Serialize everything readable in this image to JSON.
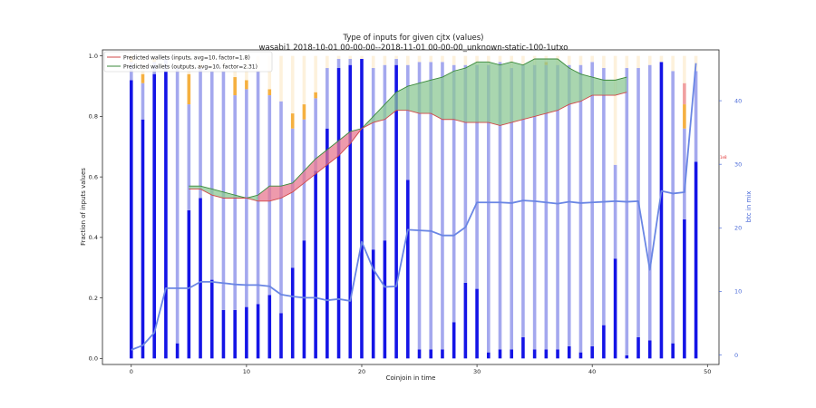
{
  "chart_data": {
    "type": "bar",
    "title": "Type of inputs for given cjtx (values)",
    "subtitle": "wasabi1 2018-10-01 00-00-00--2018-11-01 00-00-00_unknown-static-100-1utxo",
    "xlabel": "Coinjoin in time",
    "ylabel": "Fraction of inputs values",
    "y2label": "btc in mix",
    "xlim": [
      -2.5,
      51
    ],
    "ylim": [
      -0.02,
      1.02
    ],
    "y2lim": [
      -1.5,
      48
    ],
    "x_ticks": [
      0,
      10,
      20,
      30,
      40,
      50
    ],
    "y_ticks": [
      0.0,
      0.2,
      0.4,
      0.6,
      0.8,
      1.0
    ],
    "y2_ticks": [
      0,
      10,
      20,
      30,
      40
    ],
    "y_tick_labels": [
      "0.0",
      "0.2",
      "0.4",
      "0.6",
      "0.8",
      "1.0"
    ],
    "y2_tick_labels": [
      "0",
      "10",
      "20",
      "30",
      "40"
    ],
    "right_marker_label": "1e8",
    "legend_position": "top-left",
    "grid": false,
    "colors": {
      "dark_bar": "#1414e6",
      "light_bar": "#a4a8ee",
      "remix_bar": "#f5b040",
      "friend_bar": "#f0a0a0",
      "pale_bar": "#fdf1dc",
      "yellow_bar": "#f6d020",
      "btc_line": "#6a86e4",
      "pred_inputs_line": "#d04848",
      "pred_outputs_line": "#3a8a3a",
      "pred_inputs_fill": "#e87890",
      "pred_outputs_fill": "#8cc894"
    },
    "series": [
      {
        "name": "dark_fraction",
        "x": [
          0,
          1,
          2,
          3,
          4,
          5,
          6,
          7,
          8,
          9,
          10,
          11,
          12,
          13,
          14,
          15,
          16,
          17,
          18,
          19,
          20,
          21,
          22,
          23,
          24,
          25,
          26,
          27,
          28,
          29,
          30,
          31,
          32,
          33,
          34,
          35,
          36,
          37,
          38,
          39,
          40,
          41,
          42,
          43,
          44,
          45,
          46,
          47,
          48,
          49
        ],
        "values": [
          0.92,
          0.79,
          0.94,
          0.95,
          0.05,
          0.49,
          0.53,
          0.26,
          0.16,
          0.16,
          0.17,
          0.18,
          0.21,
          0.15,
          0.3,
          0.39,
          0.62,
          0.76,
          0.96,
          0.97,
          0.99,
          0.36,
          0.39,
          0.97,
          0.59,
          0.03,
          0.03,
          0.03,
          0.12,
          0.25,
          0.23,
          0.02,
          0.03,
          0.03,
          0.07,
          0.03,
          0.03,
          0.03,
          0.04,
          0.02,
          0.04,
          0.11,
          0.33,
          0.01,
          0.07,
          0.06,
          0.98,
          0.05,
          0.46,
          0.65
        ]
      },
      {
        "name": "light_fraction",
        "values": [
          0.06,
          0.12,
          0.04,
          0.04,
          0.91,
          0.35,
          0.43,
          0.69,
          0.79,
          0.71,
          0.72,
          0.77,
          0.66,
          0.7,
          0.46,
          0.4,
          0.24,
          0.2,
          0.03,
          0.02,
          0.0,
          0.6,
          0.58,
          0.02,
          0.38,
          0.95,
          0.95,
          0.95,
          0.85,
          0.72,
          0.74,
          0.95,
          0.95,
          0.93,
          0.9,
          0.94,
          0.94,
          0.94,
          0.93,
          0.95,
          0.94,
          0.85,
          0.31,
          0.95,
          0.89,
          0.91,
          0.0,
          0.9,
          0.3,
          0.3
        ]
      },
      {
        "name": "orange_fraction",
        "values": [
          0.02,
          0.03,
          0.01,
          0.0,
          0.0,
          0.1,
          0.01,
          0.0,
          0.0,
          0.06,
          0.03,
          0.0,
          0.02,
          0.0,
          0.05,
          0.05,
          0.02,
          0.0,
          0.0,
          0.0,
          0.0,
          0.0,
          0.0,
          0.0,
          0.0,
          0.0,
          0.0,
          0.0,
          0.0,
          0.0,
          0.0,
          0.0,
          0.0,
          0.0,
          0.0,
          0.0,
          0.01,
          0.0,
          0.0,
          0.0,
          0.0,
          0.0,
          0.0,
          0.0,
          0.0,
          0.0,
          0.0,
          0.0,
          0.08,
          0.0
        ]
      },
      {
        "name": "pink_fraction",
        "values": [
          0.0,
          0.0,
          0.0,
          0.0,
          0.0,
          0.0,
          0.0,
          0.0,
          0.0,
          0.0,
          0.0,
          0.0,
          0.0,
          0.0,
          0.0,
          0.0,
          0.0,
          0.0,
          0.0,
          0.0,
          0.0,
          0.0,
          0.0,
          0.0,
          0.0,
          0.0,
          0.0,
          0.0,
          0.0,
          0.0,
          0.0,
          0.0,
          0.0,
          0.0,
          0.0,
          0.0,
          0.0,
          0.0,
          0.0,
          0.0,
          0.0,
          0.0,
          0.0,
          0.0,
          0.0,
          0.0,
          0.0,
          0.0,
          0.07,
          0.0
        ]
      },
      {
        "name": "pale_fraction",
        "values": [
          0.0,
          0.06,
          0.0,
          0.0,
          0.04,
          0.06,
          0.03,
          0.05,
          0.05,
          0.07,
          0.08,
          0.05,
          0.11,
          0.15,
          0.19,
          0.16,
          0.12,
          0.04,
          0.01,
          0.01,
          0.01,
          0.04,
          0.03,
          0.01,
          0.03,
          0.02,
          0.02,
          0.02,
          0.03,
          0.03,
          0.03,
          0.03,
          0.02,
          0.04,
          0.03,
          0.03,
          0.02,
          0.03,
          0.03,
          0.03,
          0.02,
          0.04,
          0.36,
          0.04,
          0.04,
          0.03,
          0.02,
          0.05,
          0.09,
          0.05
        ]
      },
      {
        "name": "btc in mix",
        "values": [
          0.8,
          1.5,
          3.5,
          10.5,
          10.5,
          10.5,
          11.5,
          11.5,
          11.3,
          11.1,
          11.0,
          11.0,
          10.8,
          9.5,
          9.2,
          9.0,
          9.0,
          8.6,
          8.8,
          8.5,
          17.8,
          13.5,
          10.7,
          10.8,
          19.7,
          19.6,
          19.5,
          18.8,
          18.8,
          20.1,
          24.0,
          24.0,
          24.0,
          23.9,
          24.3,
          24.2,
          24.0,
          23.8,
          24.1,
          23.9,
          24.0,
          24.1,
          24.2,
          24.1,
          24.2,
          13.4,
          25.8,
          25.4,
          25.6,
          45.9
        ]
      },
      {
        "name": "Predicted wallets (inputs, avg=10, factor=1.8)",
        "x": [
          5,
          6,
          7,
          8,
          9,
          10,
          11,
          12,
          13,
          14,
          15,
          16,
          17,
          18,
          19,
          20,
          21,
          22,
          23,
          24,
          25,
          26,
          27,
          28,
          29,
          30,
          31,
          32,
          33,
          34,
          35,
          36,
          37,
          38,
          39,
          40,
          41,
          42,
          43
        ],
        "values": [
          0.56,
          0.56,
          0.54,
          0.53,
          0.53,
          0.53,
          0.52,
          0.52,
          0.53,
          0.55,
          0.58,
          0.61,
          0.64,
          0.67,
          0.71,
          0.76,
          0.78,
          0.79,
          0.82,
          0.82,
          0.81,
          0.81,
          0.79,
          0.79,
          0.78,
          0.78,
          0.78,
          0.77,
          0.78,
          0.79,
          0.8,
          0.81,
          0.82,
          0.84,
          0.85,
          0.87,
          0.87,
          0.87,
          0.88
        ]
      },
      {
        "name": "Predicted wallets (outputs, avg=10, factor=2.31)",
        "x": [
          5,
          6,
          7,
          8,
          9,
          10,
          11,
          12,
          13,
          14,
          15,
          16,
          17,
          18,
          19,
          20,
          21,
          22,
          23,
          24,
          25,
          26,
          27,
          28,
          29,
          30,
          31,
          32,
          33,
          34,
          35,
          36,
          37,
          38,
          39,
          40,
          41,
          42,
          43
        ],
        "values": [
          0.57,
          0.57,
          0.56,
          0.55,
          0.54,
          0.53,
          0.54,
          0.57,
          0.57,
          0.58,
          0.62,
          0.66,
          0.69,
          0.72,
          0.75,
          0.76,
          0.8,
          0.84,
          0.88,
          0.9,
          0.91,
          0.92,
          0.93,
          0.95,
          0.96,
          0.98,
          0.98,
          0.97,
          0.98,
          0.97,
          0.99,
          0.99,
          0.99,
          0.96,
          0.94,
          0.93,
          0.92,
          0.92,
          0.93
        ]
      }
    ]
  }
}
